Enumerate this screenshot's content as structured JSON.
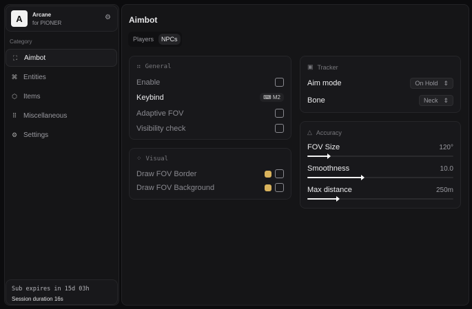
{
  "app": {
    "logo_letter": "A",
    "name": "Arcane",
    "subtitle": "for PIONER"
  },
  "sidebar": {
    "category_label": "Category",
    "items": [
      {
        "label": "Aimbot",
        "icon": "crosshair-icon",
        "glyph": "⛶",
        "active": true
      },
      {
        "label": "Entities",
        "icon": "entities-icon",
        "glyph": "⌘",
        "active": false
      },
      {
        "label": "Items",
        "icon": "cube-icon",
        "glyph": "⬡",
        "active": false
      },
      {
        "label": "Miscellaneous",
        "icon": "grid-icon",
        "glyph": "⠿",
        "active": false
      },
      {
        "label": "Settings",
        "icon": "gear-icon",
        "glyph": "⚙",
        "active": false
      }
    ],
    "footer": {
      "sub": "Sub expires in 15d 03h",
      "session": "Session duration 16s"
    }
  },
  "main": {
    "title": "Aimbot",
    "tabs": [
      {
        "label": "Players",
        "active": false
      },
      {
        "label": "NPCs",
        "active": true
      }
    ]
  },
  "general": {
    "title": "General",
    "enable": "Enable",
    "keybind": "Keybind",
    "keybind_value": "M2",
    "adaptive": "Adaptive FOV",
    "visibility": "Visibility check"
  },
  "visual": {
    "title": "Visual",
    "border": "Draw FOV Border",
    "background": "Draw FOV Background",
    "color": "#d9b35c"
  },
  "tracker": {
    "title": "Tracker",
    "aim_mode": "Aim mode",
    "aim_mode_value": "On Hold",
    "bone": "Bone",
    "bone_value": "Neck"
  },
  "accuracy": {
    "title": "Accuracy",
    "sliders": [
      {
        "label": "FOV Size",
        "value": "120°",
        "fraction": 0.15
      },
      {
        "label": "Smoothness",
        "value": "10.0",
        "fraction": 0.38
      },
      {
        "label": "Max distance",
        "value": "250m",
        "fraction": 0.21
      }
    ]
  }
}
